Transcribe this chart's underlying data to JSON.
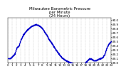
{
  "title": "Milwaukee Barometric Pressure\nper Minute\n(24 Hours)",
  "xlim": [
    0,
    1440
  ],
  "ylim": [
    29.0,
    30.05
  ],
  "yticks": [
    29.0,
    29.1,
    29.2,
    29.3,
    29.4,
    29.5,
    29.6,
    29.7,
    29.8,
    29.9,
    30.0
  ],
  "ytick_labels": [
    "29.0",
    "29.1",
    "29.2",
    "29.3",
    "29.4",
    "29.5",
    "29.6",
    "29.7",
    "29.8",
    "29.9",
    "30.0"
  ],
  "xtick_positions": [
    0,
    60,
    120,
    180,
    240,
    300,
    360,
    420,
    480,
    540,
    600,
    660,
    720,
    780,
    840,
    900,
    960,
    1020,
    1080,
    1140,
    1200,
    1260,
    1320,
    1380,
    1440
  ],
  "xtick_labels": [
    "0",
    "1",
    "2",
    "3",
    "4",
    "5",
    "6",
    "7",
    "8",
    "9",
    "10",
    "11",
    "12",
    "13",
    "14",
    "15",
    "16",
    "17",
    "18",
    "19",
    "20",
    "21",
    "22",
    "23",
    "24"
  ],
  "dot_color": "#0000cc",
  "dot_size": 0.8,
  "bg_color": "#ffffff",
  "grid_color": "#aaaaaa",
  "title_fontsize": 4,
  "tick_fontsize": 3,
  "data_x": [
    0,
    30,
    60,
    90,
    120,
    150,
    180,
    210,
    240,
    270,
    300,
    330,
    360,
    390,
    420,
    450,
    480,
    510,
    540,
    570,
    600,
    630,
    660,
    690,
    720,
    750,
    780,
    810,
    840,
    870,
    900,
    930,
    960,
    990,
    1020,
    1050,
    1080,
    1110,
    1140,
    1170,
    1200,
    1230,
    1260,
    1290,
    1320,
    1350,
    1380,
    1410,
    1440
  ],
  "data_y": [
    29.1,
    29.1,
    29.15,
    29.2,
    29.35,
    29.4,
    29.55,
    29.65,
    29.72,
    29.78,
    29.82,
    29.86,
    29.88,
    29.9,
    29.88,
    29.85,
    29.8,
    29.72,
    29.65,
    29.55,
    29.48,
    29.4,
    29.32,
    29.25,
    29.18,
    29.12,
    29.08,
    29.05,
    29.02,
    29.0,
    28.98,
    28.95,
    28.92,
    28.9,
    28.88,
    28.9,
    29.0,
    29.05,
    29.1,
    29.08,
    29.05,
    29.05,
    29.08,
    29.1,
    29.12,
    29.2,
    29.35,
    29.45,
    29.5
  ]
}
